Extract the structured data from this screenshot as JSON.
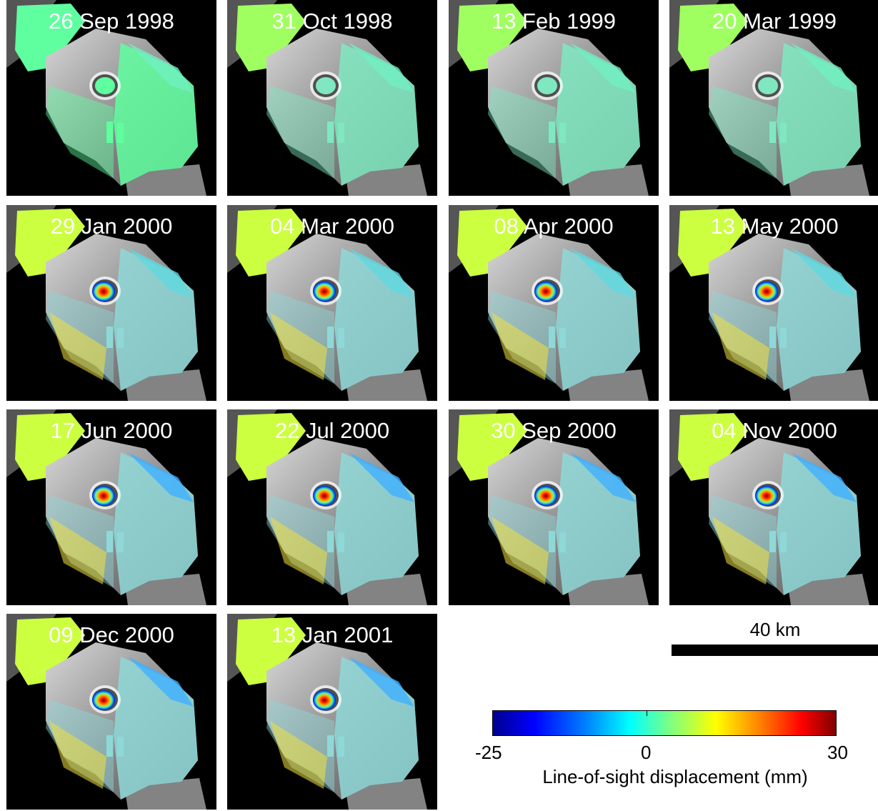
{
  "panels": [
    {
      "date": "26 Sep 1998",
      "stage": 0
    },
    {
      "date": "31 Oct 1998",
      "stage": 1
    },
    {
      "date": "13 Feb 1999",
      "stage": 1
    },
    {
      "date": "20 Mar 1999",
      "stage": 1
    },
    {
      "date": "29 Jan 2000",
      "stage": 2
    },
    {
      "date": "04 Mar 2000",
      "stage": 2
    },
    {
      "date": "08 Apr 2000",
      "stage": 2
    },
    {
      "date": "13 May 2000",
      "stage": 2
    },
    {
      "date": "17 Jun 2000",
      "stage": 3
    },
    {
      "date": "22 Jul 2000",
      "stage": 3
    },
    {
      "date": "30 Sep 2000",
      "stage": 3
    },
    {
      "date": "04 Nov 2000",
      "stage": 3
    },
    {
      "date": "09 Dec 2000",
      "stage": 3
    },
    {
      "date": "13 Jan 2001",
      "stage": 3
    }
  ],
  "scale_bar": {
    "label": "40 km"
  },
  "colorbar": {
    "min_label": "-25",
    "zero_label": "0",
    "max_label": "30",
    "label": "Line-of-sight displacement (mm)",
    "colormap": "jet"
  }
}
